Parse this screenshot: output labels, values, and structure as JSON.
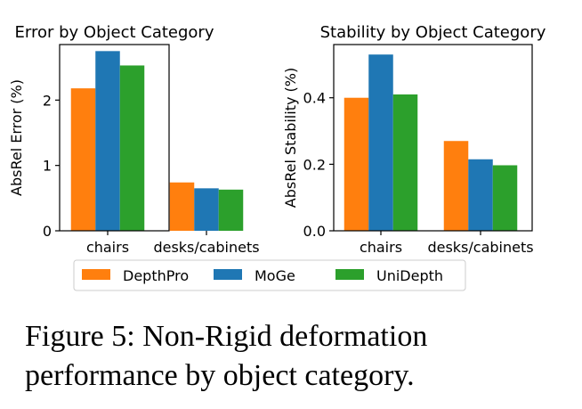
{
  "chart_data": [
    {
      "type": "bar",
      "title": "Error by Object Category",
      "xlabel": "",
      "ylabel": "AbsRel Error (%)",
      "categories": [
        "chairs",
        "desks/cabinets"
      ],
      "ylim": [
        0,
        2.85
      ],
      "yticks": [
        0,
        1,
        2
      ],
      "ytick_labels": [
        "0",
        "1",
        "2"
      ],
      "grid": false,
      "series": [
        {
          "name": "DepthPro",
          "values": [
            2.18,
            0.74
          ]
        },
        {
          "name": "MoGe",
          "values": [
            2.75,
            0.65
          ]
        },
        {
          "name": "UniDepth",
          "values": [
            2.53,
            0.63
          ]
        }
      ]
    },
    {
      "type": "bar",
      "title": "Stability by Object Category",
      "xlabel": "",
      "ylabel": "AbsRel Stability (%)",
      "categories": [
        "chairs",
        "desks/cabinets"
      ],
      "ylim": [
        0,
        0.56
      ],
      "yticks": [
        0,
        0.2,
        0.4
      ],
      "ytick_labels": [
        "0.0",
        "0.2",
        "0.4"
      ],
      "grid": false,
      "series": [
        {
          "name": "DepthPro",
          "values": [
            0.4,
            0.27
          ]
        },
        {
          "name": "MoGe",
          "values": [
            0.53,
            0.215
          ]
        },
        {
          "name": "UniDepth",
          "values": [
            0.41,
            0.197
          ]
        }
      ]
    }
  ],
  "legend": {
    "placement": "bottom-center",
    "entries": [
      {
        "label": "DepthPro",
        "color": "#ff7f0e"
      },
      {
        "label": "MoGe",
        "color": "#1f77b4"
      },
      {
        "label": "UniDepth",
        "color": "#2ca02c"
      }
    ]
  },
  "caption": "Figure 5: Non-Rigid deformation performance by object category."
}
